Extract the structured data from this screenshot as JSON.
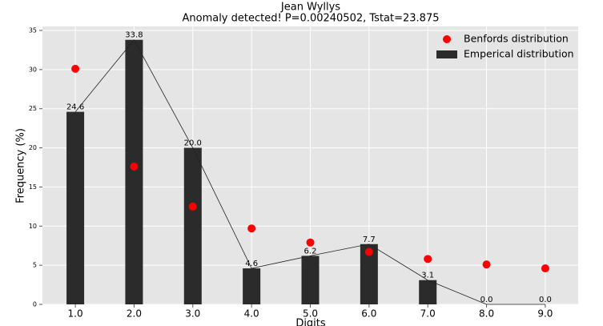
{
  "chart_data": {
    "type": "bar",
    "title": "Jean Wyllys",
    "subtitle": "Anomaly detected! P=0.00240502, Tstat=23.875",
    "x_label": "Digits",
    "y_label": "Frequency (%)",
    "x": [
      1,
      2,
      3,
      4,
      5,
      6,
      7,
      8,
      9
    ],
    "series": [
      {
        "name": "Benfords distribution",
        "type": "scatter",
        "color": "#ff0000",
        "values": [
          30.1,
          17.6,
          12.5,
          9.7,
          7.9,
          6.7,
          5.8,
          5.1,
          4.6
        ]
      },
      {
        "name": "Emperical distribution",
        "type": "bar",
        "color": "#2b2b2b",
        "values": [
          24.6,
          33.8,
          20.0,
          4.6,
          6.2,
          7.7,
          3.1,
          0.0,
          0.0
        ],
        "value_labels": [
          "24.6",
          "33.8",
          "20.0",
          "4.6",
          "6.2",
          "7.7",
          "3.1",
          "0.0",
          "0.0"
        ]
      }
    ],
    "xlim": [
      0.44,
      9.56
    ],
    "xticks": [
      {
        "value": 1,
        "label": "1.0"
      },
      {
        "value": 2,
        "label": "2.0"
      },
      {
        "value": 3,
        "label": "3.0"
      },
      {
        "value": 4,
        "label": "4.0"
      },
      {
        "value": 5,
        "label": "5.0"
      },
      {
        "value": 6,
        "label": "6.0"
      },
      {
        "value": 7,
        "label": "7.0"
      },
      {
        "value": 8,
        "label": "8.0"
      },
      {
        "value": 9,
        "label": "9.0"
      }
    ],
    "ylim": [
      0,
      35
    ],
    "yticks": [
      0,
      5,
      10,
      15,
      20,
      25,
      30,
      35
    ],
    "grid": true,
    "legend": "upper right"
  }
}
